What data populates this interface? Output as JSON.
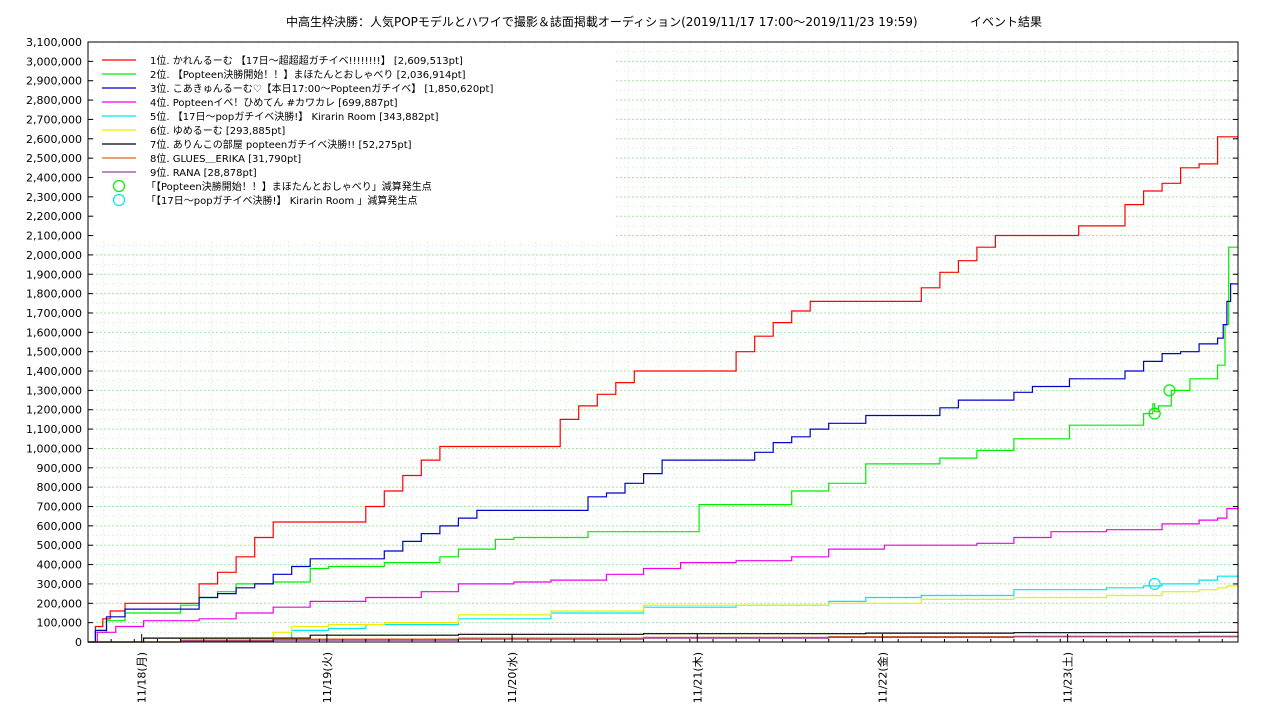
{
  "chart_data": {
    "type": "line",
    "title": "中高生枠決勝：人気POPモデルとハワイで撮影＆誌面掲載オーディション(2019/11/17 17:00〜2019/11/23 19:59)",
    "subtitle": "イベント結果",
    "xlabel": "",
    "ylabel": "",
    "ylim": [
      0,
      3100000
    ],
    "xlim": [
      0,
      6.21
    ],
    "grid": true,
    "legend_position": "top-left",
    "yticks": [
      0,
      100000,
      200000,
      300000,
      400000,
      500000,
      600000,
      700000,
      800000,
      900000,
      1000000,
      1100000,
      1200000,
      1300000,
      1400000,
      1500000,
      1600000,
      1700000,
      1800000,
      1900000,
      2000000,
      2100000,
      2200000,
      2300000,
      2400000,
      2500000,
      2600000,
      2700000,
      2800000,
      2900000,
      3000000,
      3100000
    ],
    "ytick_labels": [
      "0",
      "100,000",
      "200,000",
      "300,000",
      "400,000",
      "500,000",
      "600,000",
      "700,000",
      "800,000",
      "900,000",
      "1,000,000",
      "1,100,000",
      "1,200,000",
      "1,300,000",
      "1,400,000",
      "1,500,000",
      "1,600,000",
      "1,700,000",
      "1,800,000",
      "1,900,000",
      "2,000,000",
      "2,100,000",
      "2,200,000",
      "2,300,000",
      "2,400,000",
      "2,500,000",
      "2,600,000",
      "2,700,000",
      "2,800,000",
      "2,900,000",
      "3,000,000",
      "3,100,000"
    ],
    "xticks": [
      0.29,
      1.29,
      2.29,
      3.29,
      4.29,
      5.29
    ],
    "xtick_labels": [
      "11/18(月)",
      "11/19(火)",
      "11/20(水)",
      "11/21(木)",
      "11/22(金)",
      "11/23(土)"
    ],
    "series": [
      {
        "name": "1位. かれんるーむ 【17日〜超超超ガチイベ!!!!!!!!】 [2,609,513pt]",
        "color": "#ff0000",
        "x": [
          0,
          0.04,
          0.08,
          0.12,
          0.2,
          0.5,
          0.6,
          0.7,
          0.8,
          0.9,
          1.0,
          1.1,
          1.2,
          1.3,
          1.5,
          1.6,
          1.7,
          1.8,
          1.9,
          2.0,
          2.1,
          2.2,
          2.55,
          2.65,
          2.75,
          2.85,
          2.95,
          3.05,
          3.15,
          3.3,
          3.5,
          3.6,
          3.7,
          3.8,
          3.9,
          4.0,
          4.1,
          4.2,
          4.5,
          4.6,
          4.7,
          4.8,
          4.9,
          5.0,
          5.1,
          5.2,
          5.35,
          5.6,
          5.7,
          5.8,
          5.9,
          6.0,
          6.1,
          6.2,
          6.21
        ],
        "y": [
          0,
          80000,
          120000,
          160000,
          200000,
          200000,
          300000,
          360000,
          440000,
          540000,
          620000,
          620000,
          620000,
          620000,
          700000,
          780000,
          860000,
          940000,
          1010000,
          1010000,
          1010000,
          1010000,
          1150000,
          1220000,
          1280000,
          1340000,
          1400000,
          1400000,
          1400000,
          1400000,
          1500000,
          1580000,
          1650000,
          1710000,
          1760000,
          1760000,
          1760000,
          1760000,
          1830000,
          1910000,
          1970000,
          2040000,
          2100000,
          2100000,
          2100000,
          2100000,
          2150000,
          2260000,
          2330000,
          2370000,
          2450000,
          2470000,
          2610000,
          2610000,
          2610000
        ]
      },
      {
        "name": "2位. 【Popteen決勝開始！！】まほたんとおしゃべり [2,036,914pt]",
        "color": "#00ee00",
        "x": [
          0,
          0.04,
          0.1,
          0.2,
          0.5,
          0.6,
          0.7,
          0.8,
          1.0,
          1.2,
          1.3,
          1.5,
          1.6,
          1.8,
          1.9,
          2.0,
          2.2,
          2.3,
          2.5,
          2.7,
          3.0,
          3.3,
          3.5,
          3.8,
          4.0,
          4.2,
          4.5,
          4.6,
          4.8,
          5.0,
          5.3,
          5.6,
          5.7,
          5.75,
          5.76,
          5.78,
          5.85,
          5.95,
          6.1,
          6.14,
          6.16,
          6.21
        ],
        "y": [
          0,
          50000,
          110000,
          150000,
          190000,
          230000,
          260000,
          300000,
          310000,
          380000,
          390000,
          390000,
          410000,
          410000,
          440000,
          480000,
          530000,
          540000,
          540000,
          570000,
          570000,
          710000,
          710000,
          780000,
          820000,
          920000,
          920000,
          950000,
          990000,
          1050000,
          1120000,
          1120000,
          1180000,
          1230000,
          1190000,
          1220000,
          1300000,
          1360000,
          1430000,
          1640000,
          2040000,
          2040000
        ]
      },
      {
        "name": "3位. こあきゅんるーむ♡【本日17:00〜Popteenガチイベ】 [1,850,620pt]",
        "color": "#0000cc",
        "x": [
          0,
          0.04,
          0.1,
          0.2,
          0.5,
          0.6,
          0.7,
          0.8,
          0.9,
          1.0,
          1.1,
          1.2,
          1.3,
          1.5,
          1.6,
          1.7,
          1.8,
          1.9,
          2.0,
          2.1,
          2.3,
          2.5,
          2.7,
          2.8,
          2.9,
          3.0,
          3.1,
          3.3,
          3.5,
          3.6,
          3.7,
          3.8,
          3.9,
          4.0,
          4.2,
          4.5,
          4.6,
          4.7,
          4.9,
          5.0,
          5.1,
          5.3,
          5.5,
          5.6,
          5.7,
          5.8,
          5.9,
          6.0,
          6.1,
          6.13,
          6.15,
          6.17,
          6.21
        ],
        "y": [
          0,
          60000,
          130000,
          170000,
          170000,
          230000,
          250000,
          280000,
          300000,
          350000,
          390000,
          430000,
          430000,
          430000,
          470000,
          520000,
          560000,
          600000,
          640000,
          680000,
          680000,
          680000,
          750000,
          770000,
          820000,
          870000,
          940000,
          940000,
          940000,
          980000,
          1030000,
          1060000,
          1100000,
          1130000,
          1170000,
          1170000,
          1210000,
          1250000,
          1250000,
          1290000,
          1320000,
          1360000,
          1360000,
          1400000,
          1450000,
          1490000,
          1500000,
          1540000,
          1570000,
          1640000,
          1760000,
          1850000,
          1850000
        ]
      },
      {
        "name": "4位. Popteenイベ！ひめてん #カワカレ [699,887pt]",
        "color": "#ee00ee",
        "x": [
          0,
          0.05,
          0.15,
          0.3,
          0.6,
          0.8,
          1.0,
          1.2,
          1.5,
          1.8,
          2.0,
          2.3,
          2.5,
          2.8,
          3.0,
          3.2,
          3.5,
          3.8,
          4.0,
          4.3,
          4.5,
          4.8,
          5.0,
          5.2,
          5.5,
          5.8,
          6.0,
          6.1,
          6.15,
          6.21
        ],
        "y": [
          0,
          50000,
          80000,
          110000,
          120000,
          150000,
          180000,
          210000,
          230000,
          260000,
          300000,
          310000,
          320000,
          350000,
          380000,
          410000,
          420000,
          440000,
          480000,
          500000,
          500000,
          510000,
          540000,
          570000,
          580000,
          610000,
          630000,
          640000,
          690000,
          700000
        ]
      },
      {
        "name": "5位. 【17日〜popガチイベ決勝!】 Kirarin Room [343,882pt]",
        "color": "#00e5ee",
        "x": [
          0,
          0.5,
          1.0,
          1.1,
          1.3,
          1.5,
          2.0,
          2.5,
          3.0,
          3.3,
          3.5,
          4.0,
          4.2,
          4.5,
          5.0,
          5.5,
          5.7,
          5.8,
          6.0,
          6.1,
          6.21
        ],
        "y": [
          0,
          10000,
          20000,
          60000,
          70000,
          90000,
          120000,
          150000,
          180000,
          180000,
          190000,
          210000,
          230000,
          240000,
          270000,
          280000,
          290000,
          300000,
          320000,
          340000,
          344000
        ]
      },
      {
        "name": "6位. ゆめるーむ [293,885pt]",
        "color": "#eeee00",
        "x": [
          0,
          0.5,
          1.0,
          1.1,
          1.3,
          1.6,
          2.0,
          2.5,
          3.0,
          3.5,
          4.0,
          4.5,
          5.0,
          5.5,
          5.8,
          6.0,
          6.1,
          6.15,
          6.21
        ],
        "y": [
          0,
          20000,
          50000,
          80000,
          90000,
          100000,
          140000,
          160000,
          190000,
          190000,
          200000,
          220000,
          230000,
          240000,
          260000,
          270000,
          280000,
          290000,
          294000
        ]
      },
      {
        "name": "7位. ありんこの部屋 popteenガチイベ決勝!! [52,275pt]",
        "color": "#000000",
        "x": [
          0,
          0.3,
          1.2,
          2.0,
          3.0,
          4.2,
          5.0,
          6.0,
          6.21
        ],
        "y": [
          0,
          20000,
          35000,
          40000,
          43000,
          46000,
          48000,
          50000,
          52275
        ]
      },
      {
        "name": "8位. GLUES＿ERIKA [31,790pt]",
        "color": "#dd6622",
        "x": [
          0,
          0.5,
          1.0,
          2.0,
          3.0,
          4.0,
          5.0,
          6.21
        ],
        "y": [
          0,
          10000,
          15000,
          20000,
          24000,
          28000,
          30000,
          31790
        ]
      },
      {
        "name": "9位. RANA [28,878pt]",
        "color": "#994499",
        "x": [
          0,
          0.5,
          1.0,
          2.0,
          3.0,
          4.0,
          5.0,
          6.21
        ],
        "y": [
          0,
          5000,
          10000,
          15000,
          20000,
          24000,
          27000,
          28878
        ]
      }
    ],
    "markers": [
      {
        "name": "「【Popteen決勝開始！！】まほたんとおしゃべり」減算発生点",
        "color": "#00ee00",
        "points": [
          {
            "x": 5.76,
            "y": 1180000
          },
          {
            "x": 5.84,
            "y": 1300000
          }
        ]
      },
      {
        "name": "「【17日〜popガチイベ決勝!】 Kirarin Room 」減算発生点",
        "color": "#00e5ee",
        "points": [
          {
            "x": 5.76,
            "y": 300000
          }
        ]
      }
    ]
  }
}
